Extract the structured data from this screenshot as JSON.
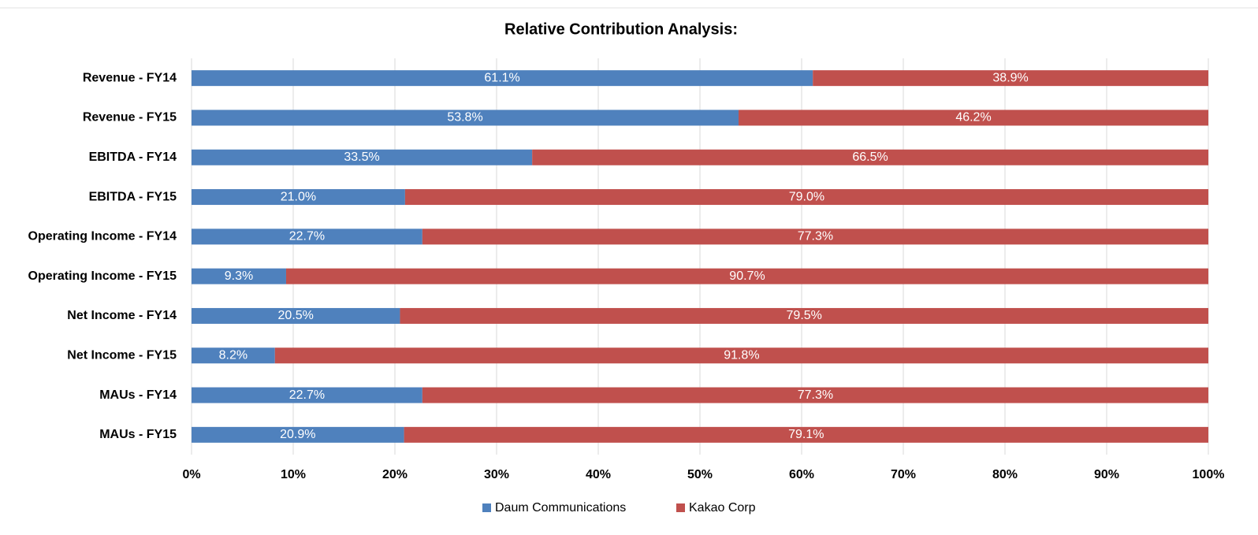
{
  "chart_data": {
    "type": "stacked_barh",
    "title": "Relative Contribution Analysis:",
    "categories": [
      "Revenue - FY14",
      "Revenue - FY15",
      "EBITDA - FY14",
      "EBITDA - FY15",
      "Operating Income - FY14",
      "Operating Income - FY15",
      "Net Income - FY14",
      "Net Income - FY15",
      "MAUs - FY14",
      "MAUs - FY15"
    ],
    "series": [
      {
        "name": "Daum Communications",
        "color": "#4f81bd",
        "values": [
          61.1,
          53.8,
          33.5,
          21.0,
          22.7,
          9.3,
          20.5,
          8.2,
          22.7,
          20.9
        ],
        "value_labels": [
          "61.1%",
          "53.8%",
          "33.5%",
          "21.0%",
          "22.7%",
          "9.3%",
          "20.5%",
          "8.2%",
          "22.7%",
          "20.9%"
        ]
      },
      {
        "name": "Kakao Corp",
        "color": "#c0504d",
        "values": [
          38.9,
          46.2,
          66.5,
          79.0,
          77.3,
          90.7,
          79.5,
          91.8,
          77.3,
          79.1
        ],
        "value_labels": [
          "38.9%",
          "46.2%",
          "66.5%",
          "79.0%",
          "77.3%",
          "90.7%",
          "79.5%",
          "91.8%",
          "77.3%",
          "79.1%"
        ]
      }
    ],
    "xlim": [
      0,
      100
    ],
    "xticks": [
      {
        "value": 0,
        "label": "0%"
      },
      {
        "value": 10,
        "label": "10%"
      },
      {
        "value": 20,
        "label": "20%"
      },
      {
        "value": 30,
        "label": "30%"
      },
      {
        "value": 40,
        "label": "40%"
      },
      {
        "value": 50,
        "label": "50%"
      },
      {
        "value": 60,
        "label": "60%"
      },
      {
        "value": 70,
        "label": "70%"
      },
      {
        "value": 80,
        "label": "80%"
      },
      {
        "value": 90,
        "label": "90%"
      },
      {
        "value": 100,
        "label": "100%"
      }
    ],
    "grid": true,
    "legend": "bottom"
  }
}
